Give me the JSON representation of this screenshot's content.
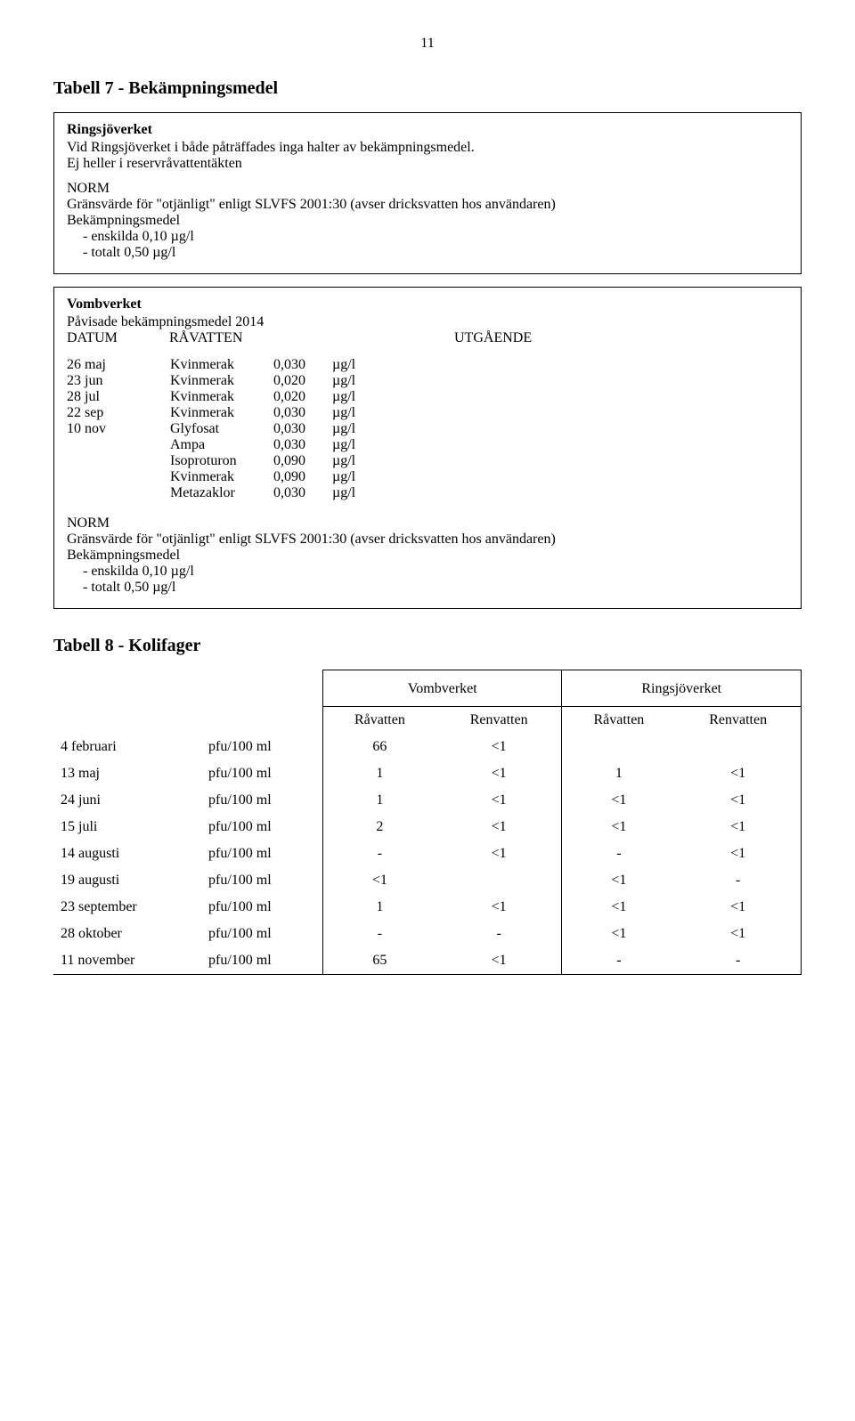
{
  "page_number": "11",
  "tabell7": {
    "heading": "Tabell 7 - Bekämpningsmedel",
    "ringsjo": {
      "title": "Ringsjöverket",
      "line1": "Vid Ringsjöverket i både påträffades inga halter av bekämpningsmedel.",
      "line2": "Ej heller i reservråvattentäkten",
      "norm_label": "NORM",
      "norm_desc": "Gränsvärde för \"otjänligt\" enligt SLVFS 2001:30 (avser dricksvatten hos användaren)",
      "norm_subject": "Bekämpningsmedel",
      "norm_items": [
        "enskilda 0,10 µg/l",
        "totalt 0,50 µg/l"
      ]
    },
    "vomb": {
      "title": "Vombverket",
      "pavisade": "Påvisade bekämpningsmedel 2014",
      "datum_label": "DATUM",
      "ravatten_label": "RÅVATTEN",
      "utgaende_label": "UTGÅENDE",
      "rows": [
        {
          "date": "26 maj",
          "name": "Kvinmerak",
          "val": "0,030",
          "unit": "µg/l"
        },
        {
          "date": "23 jun",
          "name": "Kvinmerak",
          "val": "0,020",
          "unit": "µg/l"
        },
        {
          "date": "28 jul",
          "name": "Kvinmerak",
          "val": "0,020",
          "unit": "µg/l"
        },
        {
          "date": "22 sep",
          "name": "Kvinmerak",
          "val": "0,030",
          "unit": "µg/l"
        },
        {
          "date": "10 nov",
          "name": "Glyfosat",
          "val": "0,030",
          "unit": "µg/l"
        },
        {
          "date": "",
          "name": "Ampa",
          "val": "0,030",
          "unit": "µg/l"
        },
        {
          "date": "",
          "name": "Isoproturon",
          "val": "0,090",
          "unit": "µg/l"
        },
        {
          "date": "",
          "name": "Kvinmerak",
          "val": "0,090",
          "unit": "µg/l"
        },
        {
          "date": "",
          "name": "Metazaklor",
          "val": "0,030",
          "unit": "µg/l"
        }
      ],
      "norm_label": "NORM",
      "norm_desc": "Gränsvärde för \"otjänligt\" enligt SLVFS 2001:30 (avser dricksvatten hos användaren)",
      "norm_subject": "Bekämpningsmedel",
      "norm_items": [
        "enskilda 0,10 µg/l",
        "totalt 0,50 µg/l"
      ]
    }
  },
  "tabell8": {
    "heading": "Tabell 8 - Kolifager",
    "group1": "Vombverket",
    "group2": "Ringsjöverket",
    "subcols": [
      "Råvatten",
      "Renvatten",
      "Råvatten",
      "Renvatten"
    ],
    "unit": "pfu/100 ml",
    "rows": [
      {
        "date": "4 februari",
        "v": [
          "66",
          "<1",
          "",
          ""
        ]
      },
      {
        "date": "13 maj",
        "v": [
          "1",
          "<1",
          "1",
          "<1"
        ]
      },
      {
        "date": "24 juni",
        "v": [
          "1",
          "<1",
          "<1",
          "<1"
        ]
      },
      {
        "date": "15 juli",
        "v": [
          "2",
          "<1",
          "<1",
          "<1"
        ]
      },
      {
        "date": "14 augusti",
        "v": [
          "-",
          "<1",
          "-",
          "<1"
        ]
      },
      {
        "date": "19 augusti",
        "v": [
          "<1",
          "",
          "<1",
          "-"
        ]
      },
      {
        "date": "23 september",
        "v": [
          "1",
          "<1",
          "<1",
          "<1"
        ]
      },
      {
        "date": "28 oktober",
        "v": [
          "-",
          "-",
          "<1",
          "<1"
        ]
      },
      {
        "date": "11 november",
        "v": [
          "65",
          "<1",
          "-",
          "-"
        ]
      }
    ]
  }
}
